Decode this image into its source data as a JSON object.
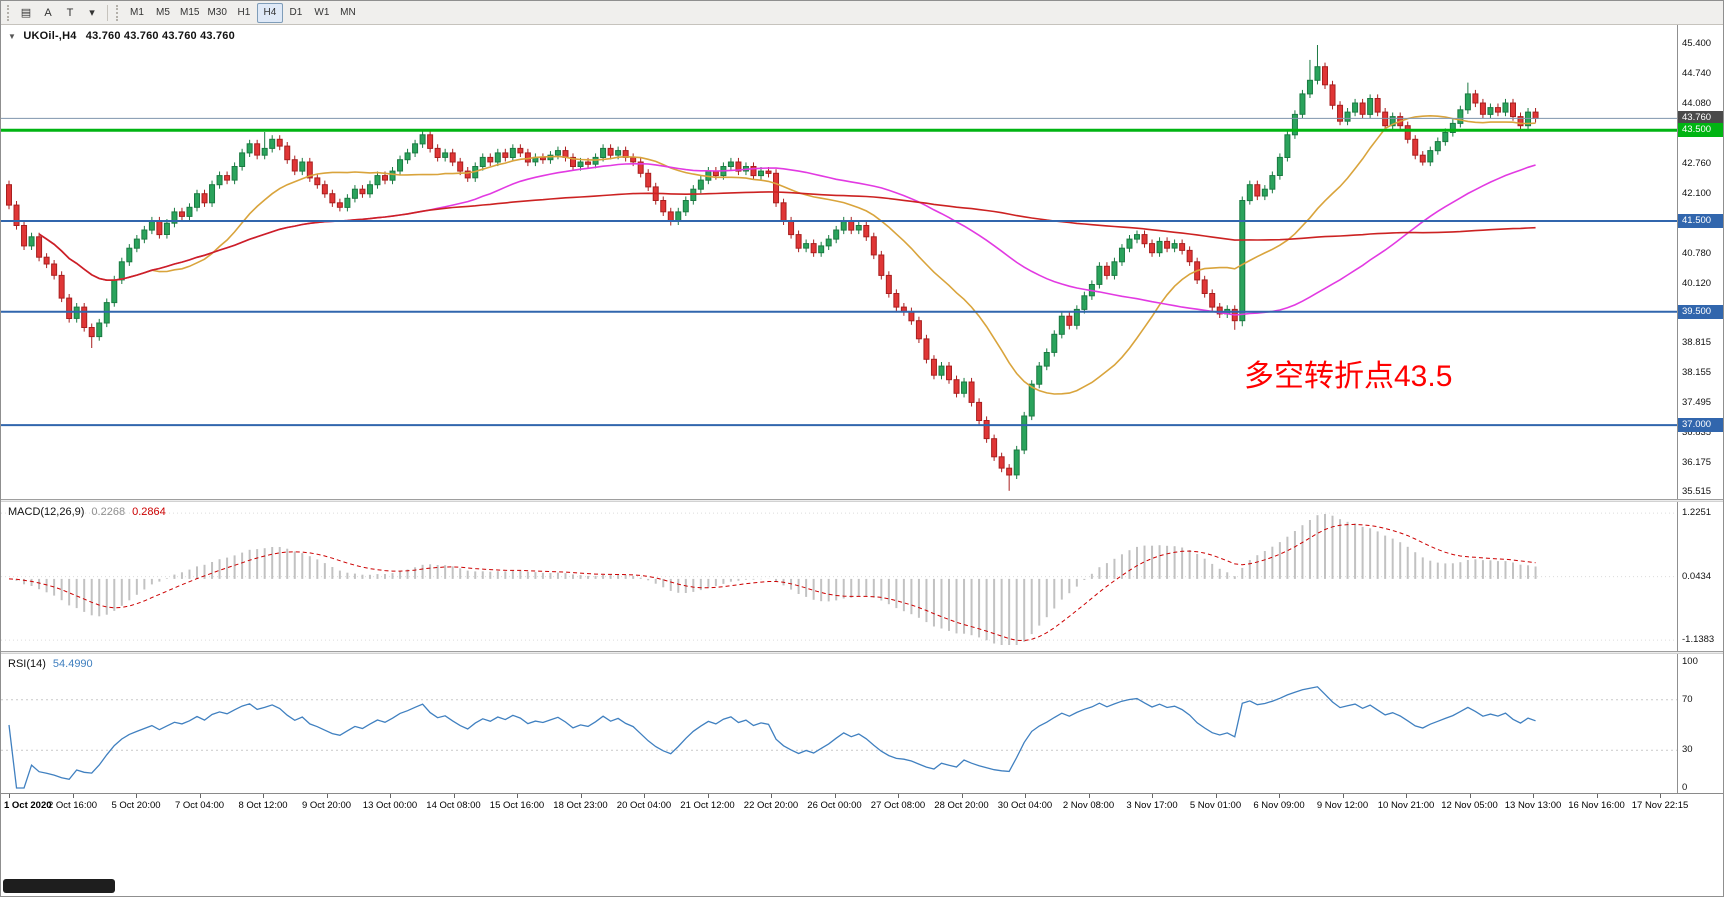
{
  "window": {
    "symbol_label": "UKOil-,H4",
    "ohlc_label": "43.760 43.760 43.760 43.760"
  },
  "toolbar": {
    "left_buttons": [
      {
        "name": "chart-window",
        "glyph": "▤"
      },
      {
        "name": "annotate-a",
        "glyph": "A"
      },
      {
        "name": "text-tool",
        "glyph": "T"
      },
      {
        "name": "tools-dropdown",
        "glyph": "▾"
      }
    ],
    "timeframes": [
      "M1",
      "M5",
      "M15",
      "M30",
      "H1",
      "H4",
      "D1",
      "W1",
      "MN"
    ],
    "active_timeframe": "H4"
  },
  "price_scale": {
    "labels": [
      "45.400",
      "44.740",
      "44.080",
      "42.760",
      "42.100",
      "40.780",
      "40.120",
      "38.815",
      "38.155",
      "37.495",
      "36.835",
      "36.175",
      "35.515"
    ],
    "badges": [
      {
        "text": "43.760",
        "value": 43.76,
        "bg": "#4a4a4a",
        "type": "current-price"
      },
      {
        "text": "43.500",
        "value": 43.5,
        "bg": "#00b412",
        "type": "hline"
      },
      {
        "text": "41.500",
        "value": 41.5,
        "bg": "#3166ad",
        "type": "hline"
      },
      {
        "text": "39.500",
        "value": 39.5,
        "bg": "#3166ad",
        "type": "hline"
      },
      {
        "text": "37.000",
        "value": 37.0,
        "bg": "#3166ad",
        "type": "hline"
      }
    ]
  },
  "chart_data": {
    "type": "candlestick",
    "title": "UKOil- H4",
    "symbol": "UKOil-",
    "timeframe": "H4",
    "current_price": 43.76,
    "y_range": {
      "min": 35.37,
      "max": 45.82
    },
    "first_open": 42.3,
    "closes": [
      41.85,
      41.4,
      40.95,
      41.15,
      40.7,
      40.55,
      40.3,
      39.8,
      39.35,
      39.6,
      39.15,
      38.95,
      39.25,
      39.7,
      40.2,
      40.6,
      40.9,
      41.1,
      41.3,
      41.5,
      41.2,
      41.45,
      41.7,
      41.6,
      41.8,
      42.1,
      41.9,
      42.3,
      42.5,
      42.4,
      42.7,
      43.0,
      43.2,
      42.95,
      43.1,
      43.3,
      43.15,
      42.85,
      42.6,
      42.8,
      42.45,
      42.3,
      42.1,
      41.9,
      41.8,
      42.0,
      42.2,
      42.1,
      42.3,
      42.5,
      42.4,
      42.6,
      42.85,
      43.0,
      43.2,
      43.4,
      43.1,
      42.9,
      43.0,
      42.8,
      42.6,
      42.45,
      42.7,
      42.9,
      42.8,
      43.0,
      42.9,
      43.1,
      43.0,
      42.8,
      42.9,
      42.85,
      42.95,
      43.05,
      42.9,
      42.7,
      42.8,
      42.75,
      42.9,
      43.1,
      42.95,
      43.05,
      42.9,
      42.8,
      42.55,
      42.25,
      41.95,
      41.7,
      41.5,
      41.7,
      41.95,
      42.2,
      42.4,
      42.6,
      42.5,
      42.7,
      42.8,
      42.6,
      42.7,
      42.5,
      42.6,
      42.55,
      41.9,
      41.5,
      41.2,
      40.9,
      41.0,
      40.8,
      40.95,
      41.1,
      41.3,
      41.5,
      41.3,
      41.4,
      41.15,
      40.75,
      40.3,
      39.9,
      39.6,
      39.5,
      39.3,
      38.9,
      38.45,
      38.1,
      38.3,
      38.0,
      37.7,
      37.95,
      37.5,
      37.1,
      36.7,
      36.3,
      36.05,
      35.9,
      36.45,
      37.2,
      37.9,
      38.3,
      38.6,
      39.0,
      39.4,
      39.2,
      39.55,
      39.85,
      40.1,
      40.5,
      40.3,
      40.6,
      40.9,
      41.1,
      41.2,
      41.0,
      40.8,
      41.05,
      40.9,
      41.0,
      40.85,
      40.6,
      40.2,
      39.9,
      39.6,
      39.45,
      39.55,
      39.3,
      41.95,
      42.3,
      42.05,
      42.2,
      42.5,
      42.9,
      43.4,
      43.85,
      44.3,
      44.6,
      44.9,
      44.5,
      44.05,
      43.7,
      43.9,
      44.1,
      43.85,
      44.2,
      43.9,
      43.6,
      43.8,
      43.6,
      43.3,
      42.95,
      42.8,
      43.05,
      43.25,
      43.45,
      43.65,
      43.95,
      44.3,
      44.1,
      43.85,
      44.0,
      43.9,
      44.1,
      43.8,
      43.6,
      43.9,
      43.76
    ],
    "wick_overrides": {
      "11": {
        "low": 38.7
      },
      "34": {
        "high": 43.46
      },
      "55": {
        "high": 43.5
      },
      "88": {
        "low": 41.4
      },
      "133": {
        "low": 35.55
      },
      "163": {
        "low": 39.1
      },
      "164": {
        "low": 39.18
      },
      "173": {
        "high": 45.05
      },
      "174": {
        "high": 45.38
      },
      "188": {
        "low": 42.72
      },
      "194": {
        "high": 44.55
      }
    },
    "hlines": [
      {
        "value": 43.5,
        "color": "#00b412",
        "width": 3
      },
      {
        "value": 41.5,
        "color": "#3166ad",
        "width": 2
      },
      {
        "value": 39.5,
        "color": "#3166ad",
        "width": 2
      },
      {
        "value": 37.0,
        "color": "#3166ad",
        "width": 2
      }
    ],
    "price_line": {
      "value": 43.76,
      "color": "#7f95ad"
    },
    "overlays": [
      {
        "name": "ma-fast",
        "period": 20,
        "color": "#d9a43c"
      },
      {
        "name": "ma-mid",
        "period": 55,
        "color": "#e23ae2"
      },
      {
        "name": "ma-slow",
        "period": 120,
        "color": "#cc2222"
      }
    ],
    "annotation": {
      "text": "多空转折点43.5",
      "color": "#ff0000"
    },
    "x_labels": [
      "1 Oct 2020",
      "2 Oct 16:00",
      "5 Oct 20:00",
      "7 Oct 04:00",
      "8 Oct 12:00",
      "9 Oct 20:00",
      "13 Oct 00:00",
      "14 Oct 08:00",
      "15 Oct 16:00",
      "18 Oct 23:00",
      "20 Oct 04:00",
      "21 Oct 12:00",
      "22 Oct 20:00",
      "26 Oct 00:00",
      "27 Oct 08:00",
      "28 Oct 20:00",
      "30 Oct 04:00",
      "2 Nov 08:00",
      "3 Nov 17:00",
      "5 Nov 01:00",
      "6 Nov 09:00",
      "9 Nov 12:00",
      "10 Nov 21:00",
      "12 Nov 05:00",
      "13 Nov 13:00",
      "16 Nov 16:00",
      "17 Nov 22:15"
    ],
    "indicators": [
      {
        "name": "MACD",
        "label": "MACD(12,26,9)",
        "value_main": "0.2268",
        "value_signal": "0.2864",
        "fast": 12,
        "slow": 26,
        "signal": 9,
        "range": {
          "min": -1.23,
          "max": 1.32
        },
        "scale_labels": [
          "1.2251",
          "0.0434",
          "-1.1383"
        ],
        "histogram_color": "#c2c2c2",
        "signal_color": "#cc0000"
      },
      {
        "name": "RSI",
        "label": "RSI(14)",
        "value": "54.4990",
        "period": 14,
        "range": {
          "min": 0,
          "max": 100
        },
        "scale_labels": [
          "100",
          "70",
          "30",
          "0"
        ],
        "levels": [
          70,
          30
        ],
        "line_color": "#4080c0"
      }
    ]
  },
  "colors": {
    "up_fill": "#2aa35c",
    "up_border": "#1b7a42",
    "down_fill": "#e03636",
    "down_border": "#a81f1f",
    "background": "#ffffff"
  }
}
